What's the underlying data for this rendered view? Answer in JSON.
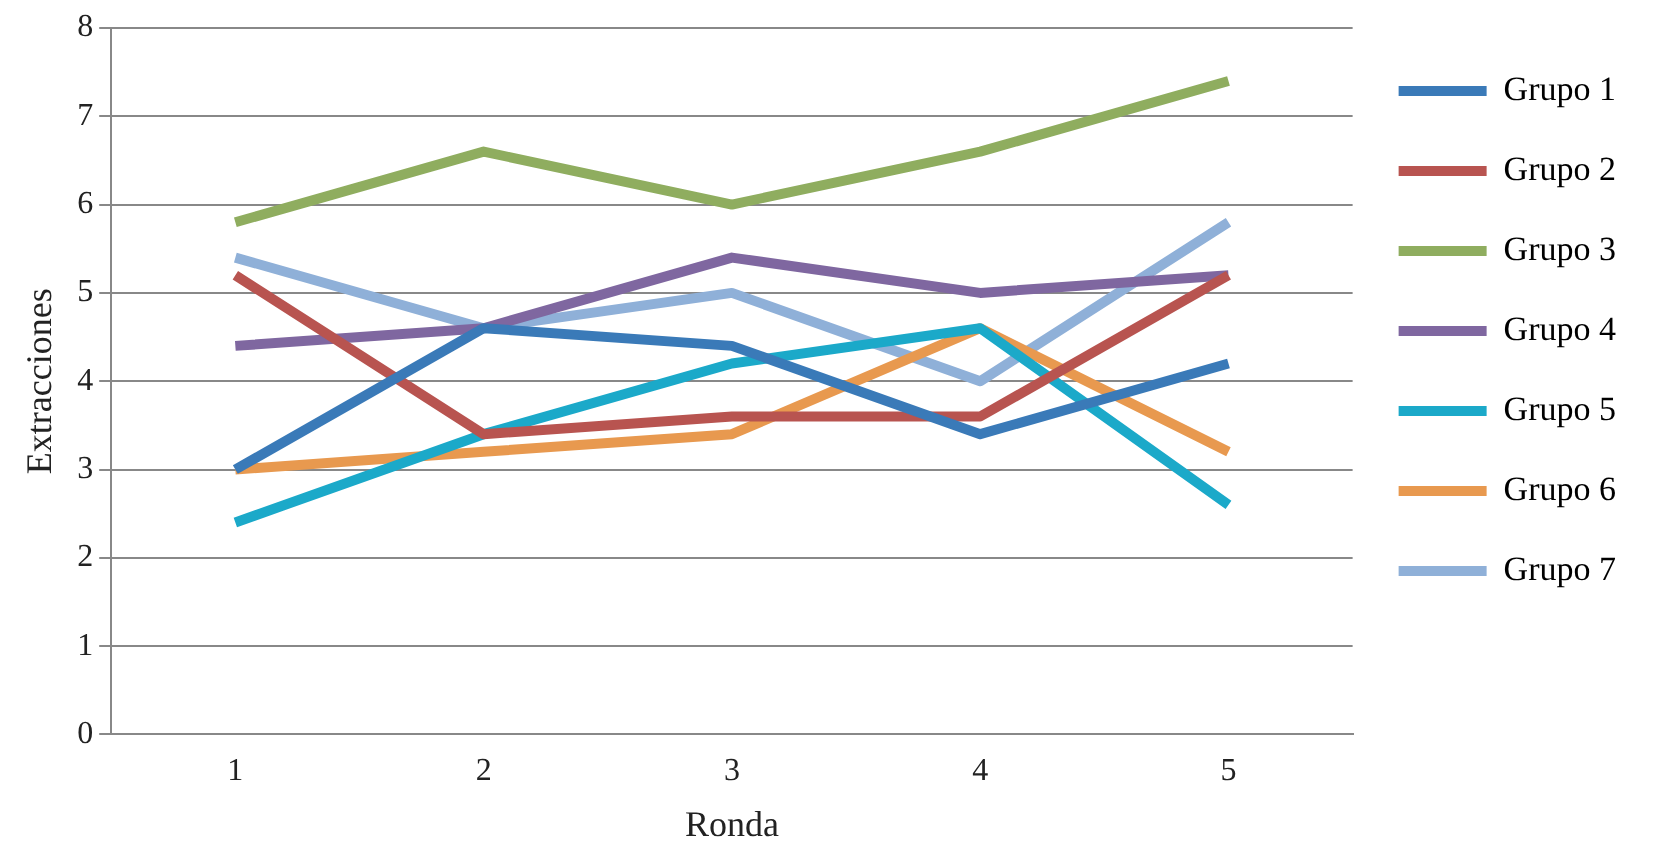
{
  "chart_data": {
    "type": "line",
    "xlabel": "Ronda",
    "ylabel": "Extracciones",
    "categories": [
      "1",
      "2",
      "3",
      "4",
      "5"
    ],
    "series": [
      {
        "name": "Grupo 1",
        "color": "#3a7ab8",
        "values": [
          3.0,
          4.6,
          4.4,
          3.4,
          4.2
        ]
      },
      {
        "name": "Grupo 2",
        "color": "#b85450",
        "values": [
          5.2,
          3.4,
          3.6,
          3.6,
          5.2
        ]
      },
      {
        "name": "Grupo 3",
        "color": "#8fad5f",
        "values": [
          5.8,
          6.6,
          6.0,
          6.6,
          7.4
        ]
      },
      {
        "name": "Grupo 4",
        "color": "#7f67a0",
        "values": [
          4.4,
          4.6,
          5.4,
          5.0,
          5.2
        ]
      },
      {
        "name": "Grupo 5",
        "color": "#1ba9c9",
        "values": [
          2.4,
          3.4,
          4.2,
          4.6,
          2.6
        ]
      },
      {
        "name": "Grupo 6",
        "color": "#e8994f",
        "values": [
          3.0,
          3.2,
          3.4,
          4.6,
          3.2
        ]
      },
      {
        "name": "Grupo 7",
        "color": "#8fb0d8",
        "values": [
          5.4,
          4.6,
          5.0,
          4.0,
          5.8
        ]
      }
    ],
    "ylim": [
      0,
      8
    ],
    "yticks": [
      0,
      1,
      2,
      3,
      4,
      5,
      6,
      7,
      8
    ],
    "grid": "y",
    "legend": "right",
    "marker": "none",
    "line_style": "solid"
  }
}
